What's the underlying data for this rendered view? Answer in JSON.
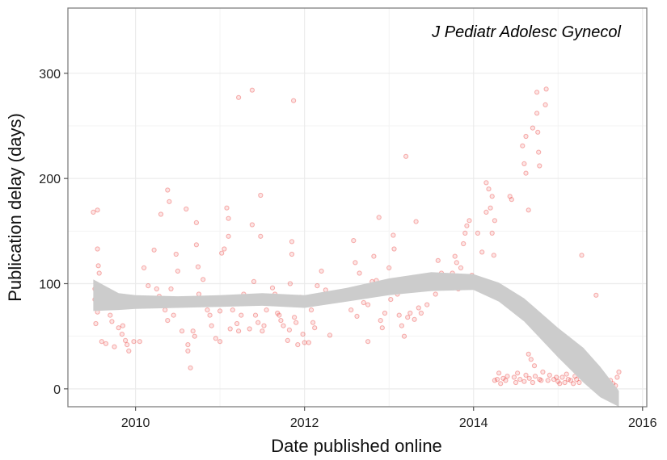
{
  "chart_data": {
    "type": "scatter",
    "title": "J Pediatr Adolesc Gynecol",
    "xlabel": "Date published online",
    "ylabel": "Publication delay (days)",
    "xlim": [
      2009.2,
      2016.05
    ],
    "ylim": [
      -17,
      362
    ],
    "x_ticks": [
      2010,
      2012,
      2014,
      2016
    ],
    "y_ticks": [
      0,
      100,
      200,
      300
    ],
    "grid": true,
    "point_color": "#e8211d",
    "band_color": "#cccccc",
    "points": [
      [
        2009.5,
        168
      ],
      [
        2009.55,
        170
      ],
      [
        2009.55,
        133
      ],
      [
        2009.56,
        117
      ],
      [
        2009.57,
        110
      ],
      [
        2009.53,
        100
      ],
      [
        2009.52,
        95
      ],
      [
        2009.55,
        90
      ],
      [
        2009.52,
        85
      ],
      [
        2009.55,
        79
      ],
      [
        2009.55,
        73
      ],
      [
        2009.53,
        62
      ],
      [
        2009.6,
        45
      ],
      [
        2009.65,
        43
      ],
      [
        2009.68,
        80
      ],
      [
        2009.7,
        70
      ],
      [
        2009.72,
        64
      ],
      [
        2009.75,
        40
      ],
      [
        2009.8,
        58
      ],
      [
        2009.84,
        52
      ],
      [
        2009.88,
        46
      ],
      [
        2009.85,
        60
      ],
      [
        2009.9,
        42
      ],
      [
        2009.92,
        36
      ],
      [
        2009.98,
        45
      ],
      [
        2010.05,
        45
      ],
      [
        2010.1,
        115
      ],
      [
        2010.15,
        98
      ],
      [
        2010.22,
        132
      ],
      [
        2010.25,
        95
      ],
      [
        2010.28,
        88
      ],
      [
        2010.3,
        80
      ],
      [
        2010.3,
        166
      ],
      [
        2010.35,
        75
      ],
      [
        2010.38,
        65
      ],
      [
        2010.38,
        189
      ],
      [
        2010.4,
        178
      ],
      [
        2010.42,
        95
      ],
      [
        2010.45,
        70
      ],
      [
        2010.48,
        128
      ],
      [
        2010.5,
        112
      ],
      [
        2010.55,
        55
      ],
      [
        2010.6,
        171
      ],
      [
        2010.62,
        42
      ],
      [
        2010.62,
        36
      ],
      [
        2010.65,
        20
      ],
      [
        2010.68,
        55
      ],
      [
        2010.7,
        50
      ],
      [
        2010.72,
        158
      ],
      [
        2010.72,
        137
      ],
      [
        2010.74,
        116
      ],
      [
        2010.75,
        90
      ],
      [
        2010.8,
        104
      ],
      [
        2010.85,
        75
      ],
      [
        2010.88,
        70
      ],
      [
        2010.9,
        60
      ],
      [
        2010.95,
        48
      ],
      [
        2011.0,
        45
      ],
      [
        2011.0,
        74
      ],
      [
        2011.02,
        129
      ],
      [
        2011.05,
        133
      ],
      [
        2011.08,
        172
      ],
      [
        2011.1,
        162
      ],
      [
        2011.1,
        145
      ],
      [
        2011.12,
        57
      ],
      [
        2011.15,
        75
      ],
      [
        2011.2,
        62
      ],
      [
        2011.22,
        55
      ],
      [
        2011.22,
        277
      ],
      [
        2011.25,
        70
      ],
      [
        2011.28,
        90
      ],
      [
        2011.3,
        85
      ],
      [
        2011.32,
        82
      ],
      [
        2011.35,
        57
      ],
      [
        2011.38,
        284
      ],
      [
        2011.38,
        156
      ],
      [
        2011.4,
        102
      ],
      [
        2011.42,
        70
      ],
      [
        2011.45,
        63
      ],
      [
        2011.48,
        145
      ],
      [
        2011.48,
        184
      ],
      [
        2011.5,
        55
      ],
      [
        2011.52,
        60
      ],
      [
        2011.55,
        75
      ],
      [
        2011.58,
        85
      ],
      [
        2011.62,
        96
      ],
      [
        2011.65,
        90
      ],
      [
        2011.68,
        72
      ],
      [
        2011.7,
        70
      ],
      [
        2011.72,
        65
      ],
      [
        2011.75,
        60
      ],
      [
        2011.8,
        46
      ],
      [
        2011.82,
        56
      ],
      [
        2011.83,
        100
      ],
      [
        2011.85,
        140
      ],
      [
        2011.85,
        128
      ],
      [
        2011.87,
        274
      ],
      [
        2011.88,
        68
      ],
      [
        2011.9,
        63
      ],
      [
        2011.92,
        42
      ],
      [
        2011.95,
        87
      ],
      [
        2011.98,
        52
      ],
      [
        2012.0,
        44
      ],
      [
        2012.05,
        44
      ],
      [
        2012.08,
        75
      ],
      [
        2012.1,
        63
      ],
      [
        2012.12,
        58
      ],
      [
        2012.15,
        98
      ],
      [
        2012.2,
        112
      ],
      [
        2012.25,
        94
      ],
      [
        2012.3,
        51
      ],
      [
        2012.4,
        88
      ],
      [
        2012.55,
        75
      ],
      [
        2012.58,
        141
      ],
      [
        2012.6,
        120
      ],
      [
        2012.62,
        69
      ],
      [
        2012.65,
        110
      ],
      [
        2012.7,
        82
      ],
      [
        2012.75,
        45
      ],
      [
        2012.75,
        80
      ],
      [
        2012.8,
        102
      ],
      [
        2012.82,
        126
      ],
      [
        2012.85,
        103
      ],
      [
        2012.88,
        163
      ],
      [
        2012.88,
        92
      ],
      [
        2012.9,
        65
      ],
      [
        2012.92,
        58
      ],
      [
        2012.95,
        72
      ],
      [
        2012.98,
        95
      ],
      [
        2013.0,
        115
      ],
      [
        2013.02,
        85
      ],
      [
        2013.05,
        146
      ],
      [
        2013.06,
        133
      ],
      [
        2013.08,
        100
      ],
      [
        2013.1,
        90
      ],
      [
        2013.12,
        70
      ],
      [
        2013.15,
        60
      ],
      [
        2013.18,
        50
      ],
      [
        2013.2,
        221
      ],
      [
        2013.22,
        68
      ],
      [
        2013.25,
        72
      ],
      [
        2013.28,
        105
      ],
      [
        2013.3,
        66
      ],
      [
        2013.32,
        159
      ],
      [
        2013.35,
        77
      ],
      [
        2013.38,
        72
      ],
      [
        2013.42,
        95
      ],
      [
        2013.45,
        80
      ],
      [
        2013.48,
        103
      ],
      [
        2013.5,
        100
      ],
      [
        2013.55,
        90
      ],
      [
        2013.58,
        122
      ],
      [
        2013.62,
        110
      ],
      [
        2013.65,
        105
      ],
      [
        2013.68,
        100
      ],
      [
        2013.7,
        96
      ],
      [
        2013.72,
        100
      ],
      [
        2013.75,
        110
      ],
      [
        2013.78,
        126
      ],
      [
        2013.8,
        120
      ],
      [
        2013.82,
        95
      ],
      [
        2013.85,
        115
      ],
      [
        2013.88,
        138
      ],
      [
        2013.9,
        148
      ],
      [
        2013.92,
        155
      ],
      [
        2013.95,
        160
      ],
      [
        2013.98,
        108
      ],
      [
        2014.05,
        148
      ],
      [
        2014.1,
        130
      ],
      [
        2014.15,
        168
      ],
      [
        2014.15,
        196
      ],
      [
        2014.18,
        190
      ],
      [
        2014.2,
        172
      ],
      [
        2014.22,
        183
      ],
      [
        2014.22,
        148
      ],
      [
        2014.24,
        127
      ],
      [
        2014.25,
        160
      ],
      [
        2014.25,
        8
      ],
      [
        2014.3,
        15
      ],
      [
        2014.35,
        10
      ],
      [
        2014.4,
        12
      ],
      [
        2014.43,
        183
      ],
      [
        2014.45,
        180
      ],
      [
        2014.5,
        6
      ],
      [
        2014.55,
        9
      ],
      [
        2014.58,
        231
      ],
      [
        2014.6,
        214
      ],
      [
        2014.62,
        205
      ],
      [
        2014.62,
        240
      ],
      [
        2014.65,
        170
      ],
      [
        2014.65,
        33
      ],
      [
        2014.68,
        28
      ],
      [
        2014.7,
        248
      ],
      [
        2014.72,
        22
      ],
      [
        2014.75,
        282
      ],
      [
        2014.75,
        262
      ],
      [
        2014.76,
        244
      ],
      [
        2014.77,
        225
      ],
      [
        2014.78,
        212
      ],
      [
        2014.8,
        8
      ],
      [
        2014.85,
        270
      ],
      [
        2014.86,
        285
      ],
      [
        2014.9,
        13
      ],
      [
        2014.95,
        9
      ],
      [
        2014.28,
        9
      ],
      [
        2014.32,
        5
      ],
      [
        2014.38,
        8
      ],
      [
        2014.48,
        11
      ],
      [
        2014.52,
        15
      ],
      [
        2014.6,
        7
      ],
      [
        2014.62,
        13
      ],
      [
        2014.66,
        10
      ],
      [
        2014.7,
        6
      ],
      [
        2014.73,
        12
      ],
      [
        2014.78,
        9
      ],
      [
        2014.82,
        16
      ],
      [
        2014.88,
        8
      ],
      [
        2014.98,
        11
      ],
      [
        2015.0,
        7
      ],
      [
        2015.02,
        5
      ],
      [
        2015.05,
        11
      ],
      [
        2015.08,
        6
      ],
      [
        2015.1,
        14
      ],
      [
        2015.12,
        9
      ],
      [
        2015.15,
        8
      ],
      [
        2015.18,
        5
      ],
      [
        2015.2,
        12
      ],
      [
        2015.22,
        9
      ],
      [
        2015.25,
        6
      ],
      [
        2015.28,
        127
      ],
      [
        2015.3,
        22
      ],
      [
        2015.32,
        10
      ],
      [
        2015.35,
        7
      ],
      [
        2015.38,
        5
      ],
      [
        2015.42,
        8
      ],
      [
        2015.45,
        89
      ],
      [
        2015.48,
        12
      ],
      [
        2015.5,
        6
      ],
      [
        2015.55,
        9
      ],
      [
        2015.58,
        4
      ],
      [
        2015.62,
        8
      ],
      [
        2015.65,
        5
      ],
      [
        2015.7,
        11
      ],
      [
        2015.72,
        16
      ],
      [
        2015.68,
        3
      ]
    ],
    "smooth_band": [
      [
        2009.5,
        74,
        104
      ],
      [
        2009.8,
        75,
        91
      ],
      [
        2010.0,
        76,
        89
      ],
      [
        2010.5,
        77,
        88
      ],
      [
        2011.0,
        78,
        89
      ],
      [
        2011.5,
        79,
        91
      ],
      [
        2012.0,
        77,
        89
      ],
      [
        2012.5,
        83,
        96
      ],
      [
        2013.0,
        89,
        105
      ],
      [
        2013.5,
        93,
        111
      ],
      [
        2014.0,
        94,
        109
      ],
      [
        2014.3,
        83,
        101
      ],
      [
        2014.6,
        64,
        86
      ],
      [
        2015.0,
        30,
        58
      ],
      [
        2015.3,
        6,
        39
      ],
      [
        2015.5,
        -8,
        21
      ],
      [
        2015.72,
        -17,
        -2
      ]
    ]
  }
}
